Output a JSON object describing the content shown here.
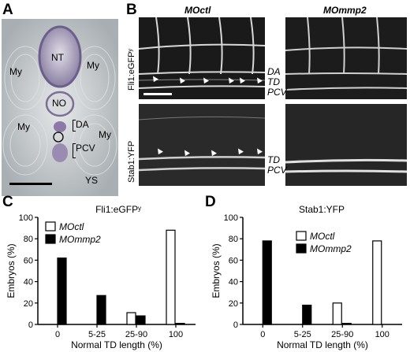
{
  "panelA": {
    "letter": "A",
    "labels": {
      "nt": "NT",
      "my": "My",
      "no": "NO",
      "da": "DA",
      "pcv": "PCV",
      "ys": "YS"
    }
  },
  "panelB": {
    "letter": "B",
    "col_left": "MOctl",
    "col_right": "MOmmp2",
    "row_top": "Fli1:eGFPʸ",
    "row_bottom": "Stab1:YFP",
    "labels_top": [
      "DA",
      "TD",
      "PCV"
    ],
    "labels_bottom": [
      "TD",
      "PCV"
    ]
  },
  "chart_data": [
    {
      "panel": "C",
      "type": "bar",
      "title": "Fli1:eGFPʸ",
      "xlabel": "Normal TD length (%)",
      "ylabel": "Embryos (%)",
      "ylim": [
        0,
        100
      ],
      "yticks": [
        0,
        20,
        40,
        60,
        80,
        100
      ],
      "categories": [
        "0",
        "5-25",
        "25-90",
        "100"
      ],
      "series": [
        {
          "name": "MOctl",
          "color": "#ffffff",
          "values": [
            0,
            0,
            11,
            88
          ]
        },
        {
          "name": "MOmmp2",
          "color": "#000000",
          "values": [
            62,
            27,
            8,
            1
          ]
        }
      ],
      "legend": "top-left"
    },
    {
      "panel": "D",
      "type": "bar",
      "title": "Stab1:YFP",
      "xlabel": "Normal TD length (%)",
      "ylabel": "Embryos (%)",
      "ylim": [
        0,
        100
      ],
      "yticks": [
        0,
        20,
        40,
        60,
        80,
        100
      ],
      "categories": [
        "0",
        "5-25",
        "25-90",
        "100"
      ],
      "series": [
        {
          "name": "MOctl",
          "color": "#ffffff",
          "values": [
            0,
            0,
            20,
            78
          ]
        },
        {
          "name": "MOmmp2",
          "color": "#000000",
          "values": [
            78,
            18,
            1,
            0
          ]
        }
      ],
      "legend": "top-right"
    }
  ]
}
